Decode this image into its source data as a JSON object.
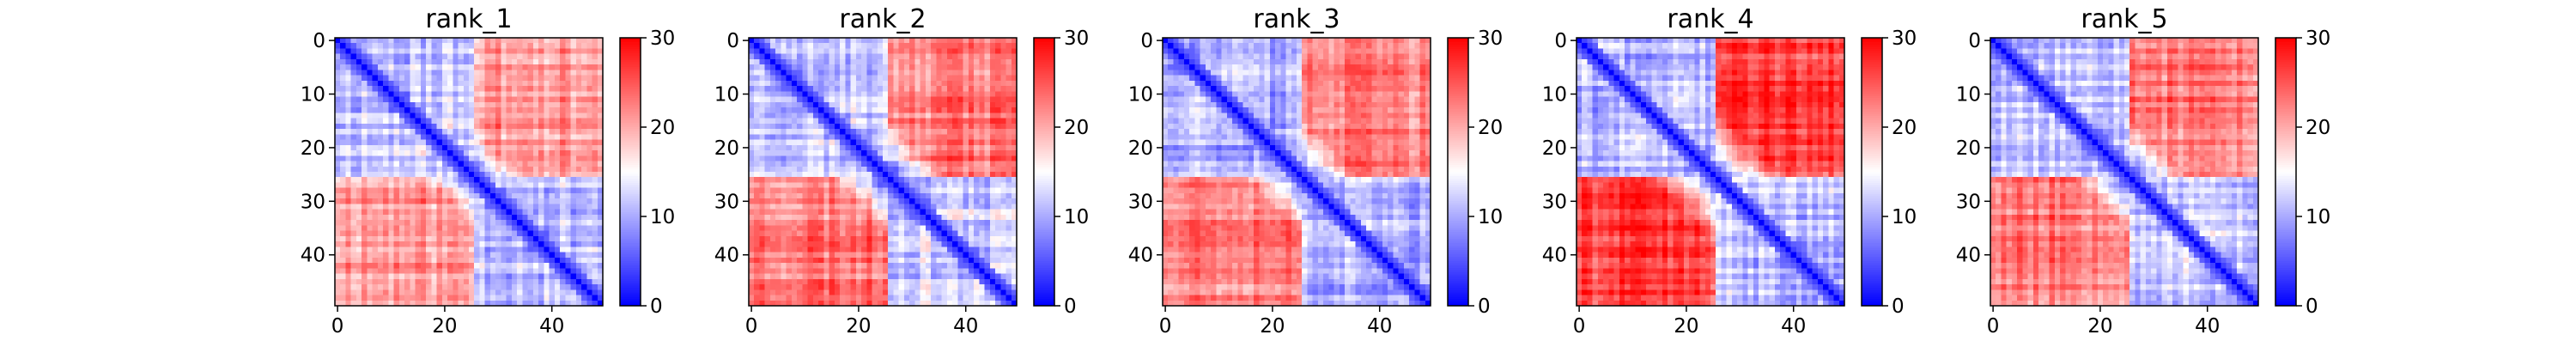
{
  "chart_data": [
    {
      "type": "heatmap",
      "title": "rank_1",
      "size": 50,
      "x_ticks": [
        0,
        20,
        40
      ],
      "y_ticks": [
        0,
        10,
        20,
        30,
        40
      ],
      "colorbar": {
        "min": 0,
        "max": 30,
        "ticks": [
          0,
          10,
          20,
          30
        ],
        "colormap": "bwr"
      },
      "blocks": [
        {
          "start": 0,
          "end": 26
        },
        {
          "start": 26,
          "end": 50
        }
      ],
      "intra_level": 12,
      "inter_level": 21,
      "noise": 2.5,
      "seed": 11
    },
    {
      "type": "heatmap",
      "title": "rank_2",
      "size": 50,
      "x_ticks": [
        0,
        20,
        40
      ],
      "y_ticks": [
        0,
        10,
        20,
        30,
        40
      ],
      "colorbar": {
        "min": 0,
        "max": 30,
        "ticks": [
          0,
          10,
          20,
          30
        ],
        "colormap": "bwr"
      },
      "blocks": [
        {
          "start": 0,
          "end": 26
        },
        {
          "start": 26,
          "end": 50
        }
      ],
      "intra_level": 12,
      "inter_level": 23,
      "noise": 2.5,
      "seed": 23
    },
    {
      "type": "heatmap",
      "title": "rank_3",
      "size": 50,
      "x_ticks": [
        0,
        20,
        40
      ],
      "y_ticks": [
        0,
        10,
        20,
        30,
        40
      ],
      "colorbar": {
        "min": 0,
        "max": 30,
        "ticks": [
          0,
          10,
          20,
          30
        ],
        "colormap": "bwr"
      },
      "blocks": [
        {
          "start": 0,
          "end": 26
        },
        {
          "start": 26,
          "end": 50
        }
      ],
      "intra_level": 11,
      "inter_level": 23,
      "noise": 2.5,
      "seed": 37
    },
    {
      "type": "heatmap",
      "title": "rank_4",
      "size": 50,
      "x_ticks": [
        0,
        20,
        40
      ],
      "y_ticks": [
        0,
        10,
        20,
        30,
        40
      ],
      "colorbar": {
        "min": 0,
        "max": 30,
        "ticks": [
          0,
          10,
          20,
          30
        ],
        "colormap": "bwr"
      },
      "blocks": [
        {
          "start": 0,
          "end": 26
        },
        {
          "start": 26,
          "end": 50
        }
      ],
      "intra_level": 11,
      "inter_level": 26,
      "noise": 2.5,
      "seed": 41
    },
    {
      "type": "heatmap",
      "title": "rank_5",
      "size": 50,
      "x_ticks": [
        0,
        20,
        40
      ],
      "y_ticks": [
        0,
        10,
        20,
        30,
        40
      ],
      "colorbar": {
        "min": 0,
        "max": 30,
        "ticks": [
          0,
          10,
          20,
          30
        ],
        "colormap": "bwr"
      },
      "blocks": [
        {
          "start": 0,
          "end": 26
        },
        {
          "start": 26,
          "end": 50
        }
      ],
      "intra_level": 12,
      "inter_level": 23,
      "noise": 2.5,
      "seed": 53
    }
  ]
}
